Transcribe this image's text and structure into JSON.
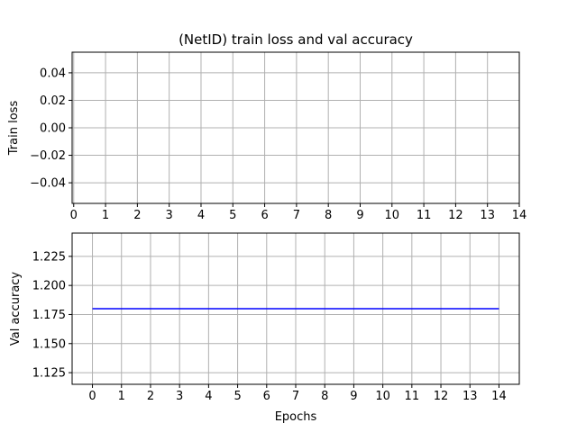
{
  "chart_data": [
    {
      "type": "line",
      "title": "(NetID) train loss and val accuracy",
      "xlabel": "",
      "ylabel": "Train loss",
      "xlim": [
        -0.05,
        14
      ],
      "ylim": [
        -0.055,
        0.055
      ],
      "xticks": [
        0,
        1,
        2,
        3,
        4,
        5,
        6,
        7,
        8,
        9,
        10,
        11,
        12,
        13,
        14
      ],
      "xtick_labels": [
        "0",
        "1",
        "2",
        "3",
        "4",
        "5",
        "6",
        "7",
        "8",
        "9",
        "10",
        "11",
        "12",
        "13",
        "14"
      ],
      "yticks": [
        -0.04,
        -0.02,
        0.0,
        0.02,
        0.04
      ],
      "ytick_labels": [
        "−0.04",
        "−0.02",
        "0.00",
        "0.02",
        "0.04"
      ],
      "grid": true,
      "series": []
    },
    {
      "type": "line",
      "title": "",
      "xlabel": "Epochs",
      "ylabel": "Val accuracy",
      "xlim": [
        -0.7,
        14.7
      ],
      "ylim": [
        1.115,
        1.245
      ],
      "xticks": [
        0,
        1,
        2,
        3,
        4,
        5,
        6,
        7,
        8,
        9,
        10,
        11,
        12,
        13,
        14
      ],
      "xtick_labels": [
        "0",
        "1",
        "2",
        "3",
        "4",
        "5",
        "6",
        "7",
        "8",
        "9",
        "10",
        "11",
        "12",
        "13",
        "14"
      ],
      "yticks": [
        1.125,
        1.15,
        1.175,
        1.2,
        1.225
      ],
      "ytick_labels": [
        "1.125",
        "1.150",
        "1.175",
        "1.200",
        "1.225"
      ],
      "grid": true,
      "series": [
        {
          "color": "#0000ff",
          "x": [
            0,
            1,
            2,
            3,
            4,
            5,
            6,
            7,
            8,
            9,
            10,
            11,
            12,
            13,
            14
          ],
          "y": [
            1.18,
            1.18,
            1.18,
            1.18,
            1.18,
            1.18,
            1.18,
            1.18,
            1.18,
            1.18,
            1.18,
            1.18,
            1.18,
            1.18,
            1.18
          ]
        }
      ]
    }
  ]
}
